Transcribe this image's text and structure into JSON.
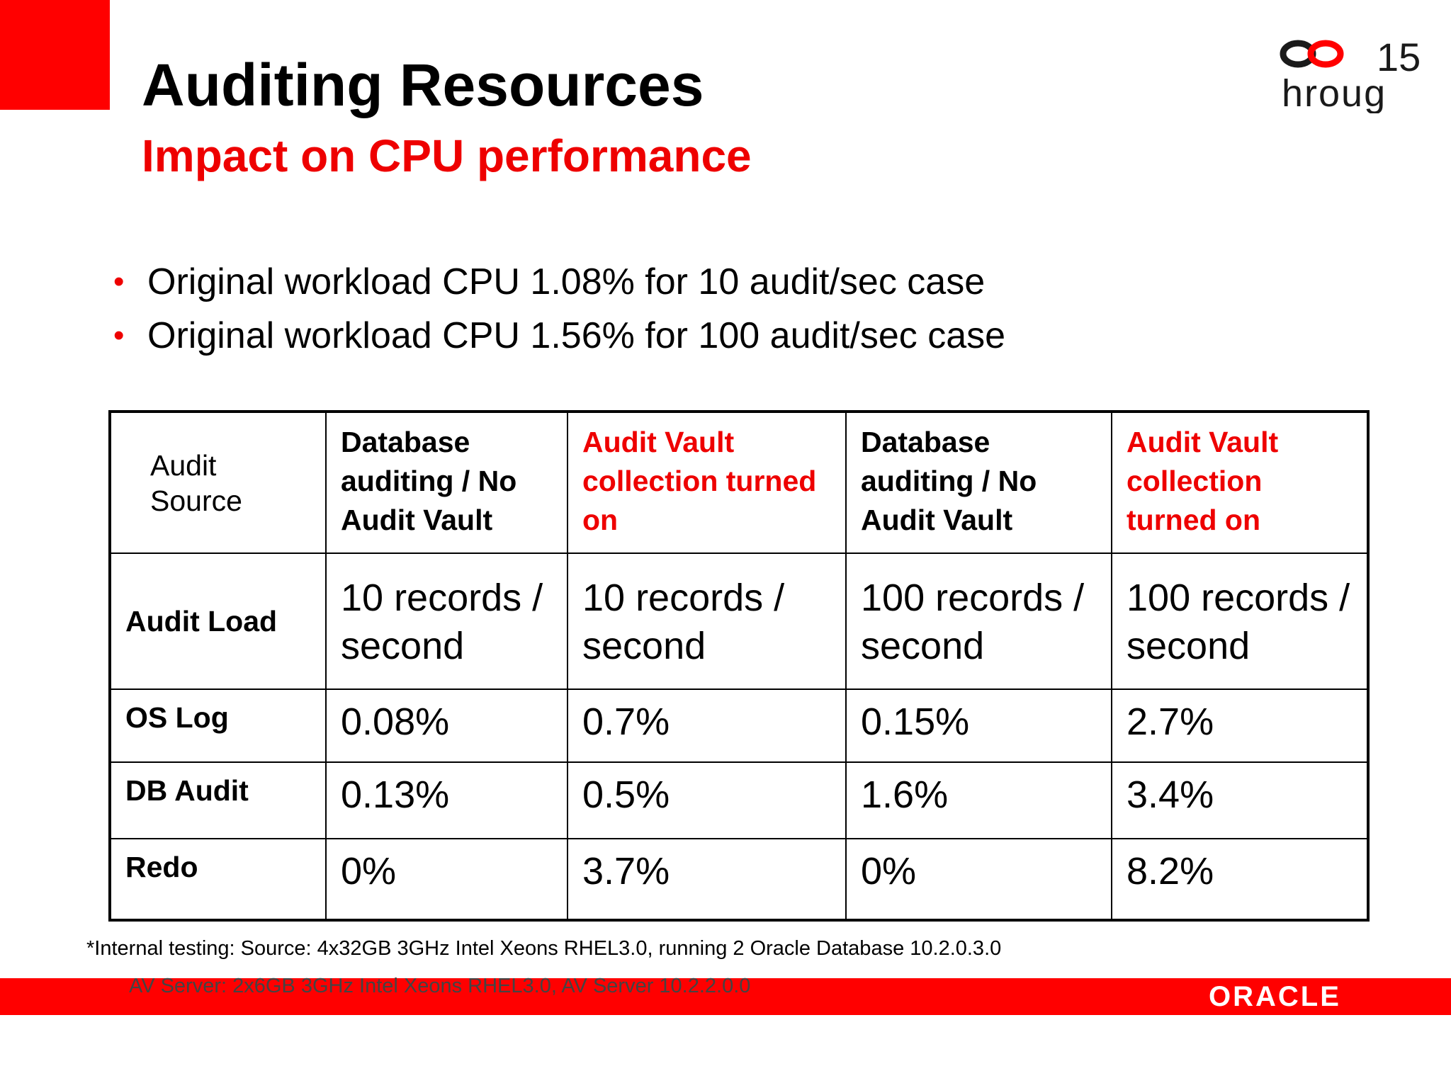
{
  "slide": {
    "title": "Auditing Resources",
    "subtitle": "Impact on CPU performance"
  },
  "logo": {
    "number": "15",
    "text": "hroug"
  },
  "bullets": [
    "Original workload CPU 1.08% for 10 audit/sec case",
    "Original workload CPU 1.56% for 100 audit/sec case"
  ],
  "table": {
    "corner": "Audit Source",
    "headers": [
      "Database auditing / No Audit Vault",
      "Audit Vault collection turned on",
      "Database auditing / No Audit Vault",
      "Audit Vault collection turned on"
    ],
    "load_label": "Audit Load",
    "loads": [
      "10 records / second",
      "10 records / second",
      "100 records / second",
      "100 records / second"
    ],
    "rows": [
      {
        "label": "OS Log",
        "values": [
          "0.08%",
          "0.7%",
          "0.15%",
          "2.7%"
        ]
      },
      {
        "label": "DB Audit",
        "values": [
          "0.13%",
          "0.5%",
          "1.6%",
          "3.4%"
        ]
      },
      {
        "label": "Redo",
        "values": [
          "0%",
          "3.7%",
          "0%",
          "8.2%"
        ]
      }
    ]
  },
  "footnote": {
    "line1": "*Internal testing:  Source: 4x32GB 3GHz Intel Xeons RHEL3.0, running 2 Oracle Database 10.2.0.3.0",
    "line2": "AV Server:   2x6GB 3GHz Intel Xeons RHEL3.0, AV Server 10.2.2.0.0"
  },
  "brand": "ORACLE",
  "colors": {
    "accent": "#ff0000",
    "text": "#000000"
  }
}
